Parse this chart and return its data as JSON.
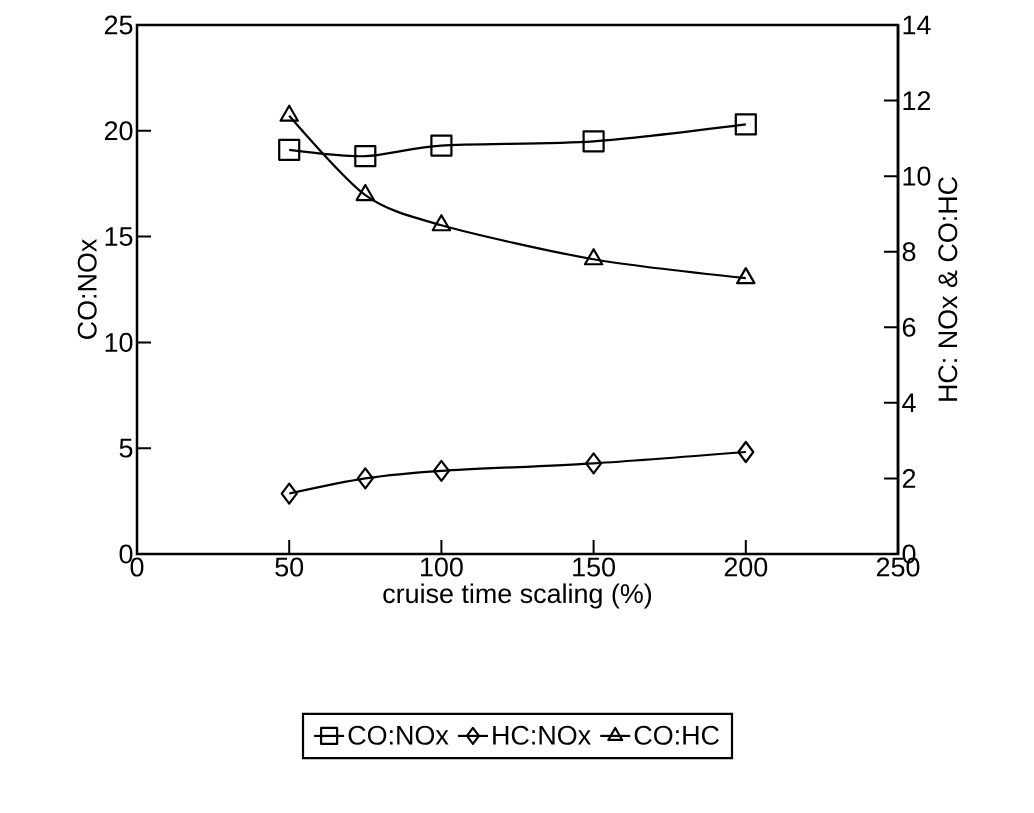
{
  "chart_data": {
    "type": "line",
    "xlabel": "cruise time scaling (%)",
    "ylabel": "CO:NOx",
    "y2label": "HC: NOx & CO:HC",
    "x": [
      50,
      75,
      100,
      150,
      200
    ],
    "series": [
      {
        "name": "CO:NOx",
        "color": "#000000",
        "marker": "square",
        "values": [
          19.1,
          18.8,
          19.3,
          19.5,
          20.3
        ]
      },
      {
        "name": "HC:NOx",
        "color": "#000000",
        "marker": "diamond",
        "axis": "y2",
        "values": [
          1.6,
          2.0,
          2.2,
          2.4,
          2.7
        ]
      },
      {
        "name": "CO:HC",
        "color": "#000000",
        "marker": "triangle",
        "axis": "y2",
        "values": [
          11.6,
          9.5,
          8.7,
          7.8,
          7.3
        ]
      }
    ],
    "xlim": [
      0,
      250
    ],
    "xticks": [
      0,
      50,
      100,
      150,
      200,
      250
    ],
    "ylim": [
      0,
      25
    ],
    "yticks": [
      0,
      5,
      10,
      15,
      20,
      25
    ],
    "y2lim": [
      0,
      14
    ],
    "y2ticks": [
      0,
      2,
      4,
      6,
      8,
      10,
      12,
      14
    ],
    "legend": "bottom",
    "grid": false
  }
}
